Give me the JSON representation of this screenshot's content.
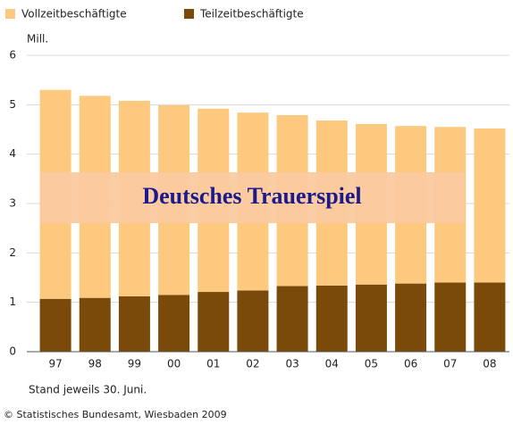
{
  "chart_data": {
    "type": "stacked_bar",
    "y_label": "Mill.",
    "annotation": "Deutsches Trauerspiel",
    "note": "Stand jeweils 30. Juni.",
    "source": "© Statistisches Bundesamt, Wiesbaden 2009",
    "categories": [
      "97",
      "98",
      "99",
      "00",
      "01",
      "02",
      "03",
      "04",
      "05",
      "06",
      "07",
      "08"
    ],
    "series": [
      {
        "name": "Vollzeitbeschäftigte",
        "color": "#fcc97f",
        "values": [
          4.23,
          4.09,
          3.96,
          3.84,
          3.71,
          3.6,
          3.46,
          3.34,
          3.25,
          3.19,
          3.15,
          3.12
        ]
      },
      {
        "name": "Teilzeitbeschäftigte",
        "color": "#7a4a0a",
        "values": [
          1.07,
          1.09,
          1.12,
          1.15,
          1.21,
          1.24,
          1.33,
          1.34,
          1.36,
          1.38,
          1.4,
          1.4
        ]
      }
    ],
    "ylim": [
      0,
      6
    ],
    "yticks": [
      0,
      1,
      2,
      3,
      4,
      5,
      6
    ],
    "grid": true
  }
}
